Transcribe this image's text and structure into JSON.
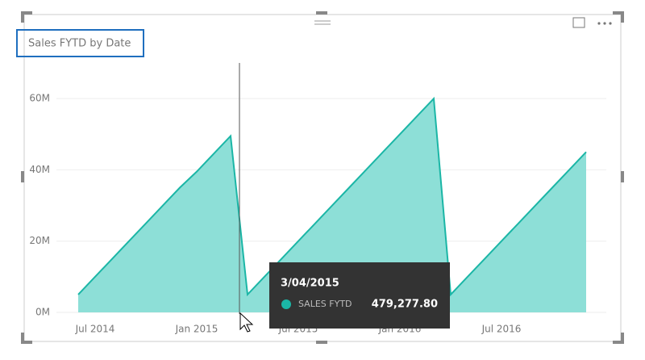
{
  "chart_data": {
    "type": "area",
    "title": "Sales FYTD by Date",
    "categories": [
      null,
      "Jul 2014",
      null,
      null,
      null,
      null,
      null,
      "Jan 2015",
      null,
      null,
      null,
      null,
      null,
      "Jul 2015",
      null,
      null,
      null,
      null,
      null,
      "Jan 2016",
      null,
      null,
      null,
      null,
      null,
      "Jul 2016",
      null,
      null,
      null,
      null,
      null
    ],
    "values": [
      5,
      10,
      15,
      20,
      25,
      30,
      35,
      39.5,
      44.5,
      49.5,
      5,
      10,
      15,
      20,
      25,
      30,
      35,
      40,
      45,
      50,
      55,
      60,
      5,
      10,
      15,
      20,
      25,
      30,
      35,
      40,
      45
    ],
    "color": "#1bb6a6",
    "fill": "#8ddfd7",
    "ylim": [
      0,
      70
    ],
    "yticks": [
      {
        "value": 0,
        "label": "0M"
      },
      {
        "value": 20,
        "label": "20M"
      },
      {
        "value": 40,
        "label": "40M"
      },
      {
        "value": 60,
        "label": "60M"
      }
    ],
    "grid": true,
    "tooltip": {
      "date": "3/04/2015",
      "label": "SALES FYTD",
      "value": "479,277.80"
    }
  }
}
